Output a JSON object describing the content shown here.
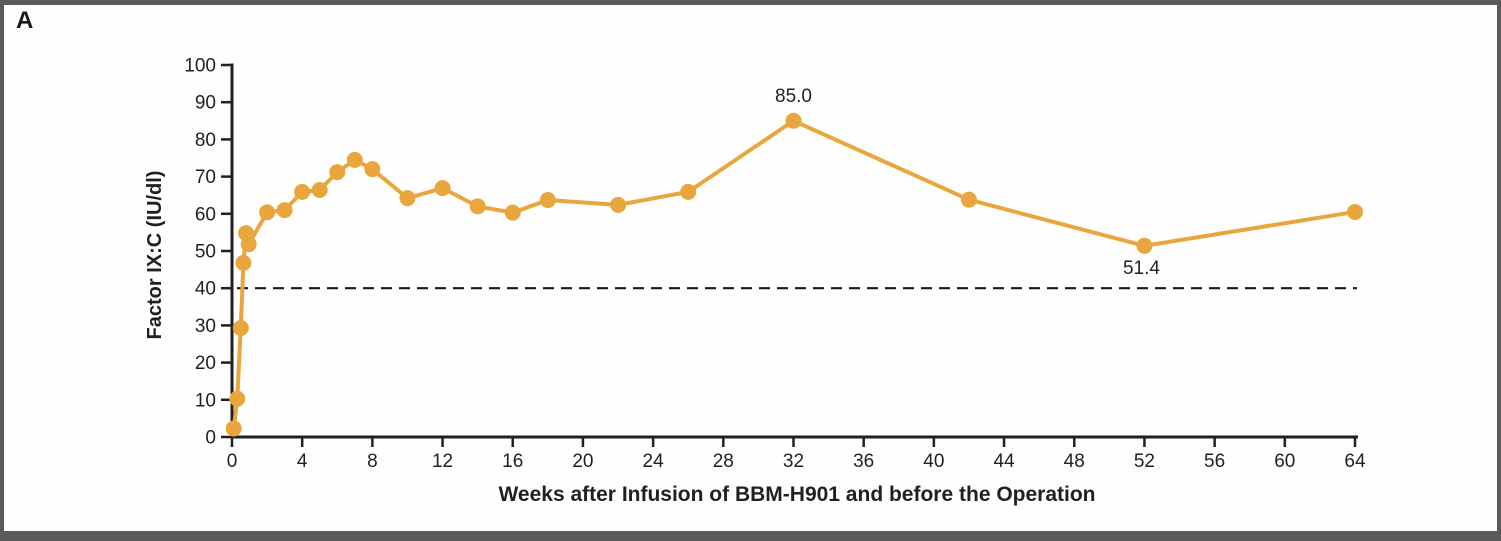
{
  "panel_label": "A",
  "colors": {
    "series": "#E9A63C",
    "axis": "#231F20",
    "frame": "#5A5A5A",
    "reference": "#1A1A1A",
    "background": "#FEFEFE"
  },
  "chart_data": {
    "type": "line",
    "title": "",
    "xlabel": "Weeks after Infusion of BBM-H901 and before the Operation",
    "ylabel": "Factor IX:C (IU/dl)",
    "xlim": [
      0,
      64.5
    ],
    "ylim": [
      0,
      100
    ],
    "x_ticks": [
      0,
      4,
      8,
      12,
      16,
      20,
      24,
      28,
      32,
      36,
      40,
      44,
      48,
      52,
      56,
      60,
      64
    ],
    "y_ticks": [
      0,
      10,
      20,
      30,
      40,
      50,
      60,
      70,
      80,
      90,
      100
    ],
    "grid": false,
    "legend": false,
    "reference_line": {
      "y": 40,
      "style": "dashed"
    },
    "series": [
      {
        "name": "Factor IX:C activity",
        "x": [
          0.1,
          0.3,
          0.5,
          0.65,
          0.8,
          0.95,
          2,
          3,
          4,
          5,
          6,
          7,
          8,
          10,
          12,
          14,
          16,
          18,
          22,
          26,
          32,
          42,
          52,
          64
        ],
        "y": [
          2.3,
          10.3,
          29.3,
          46.8,
          54.8,
          51.8,
          60.4,
          61.0,
          65.9,
          66.4,
          71.2,
          74.5,
          72.0,
          64.2,
          66.9,
          62.0,
          60.3,
          63.7,
          62.4,
          65.9,
          85.0,
          63.8,
          51.4,
          60.5
        ]
      }
    ],
    "point_labels": [
      {
        "x": 32,
        "y": 85.0,
        "text": "85.0",
        "position": "above"
      },
      {
        "x": 52,
        "y": 51.4,
        "text": "51.4",
        "position": "below"
      }
    ]
  }
}
